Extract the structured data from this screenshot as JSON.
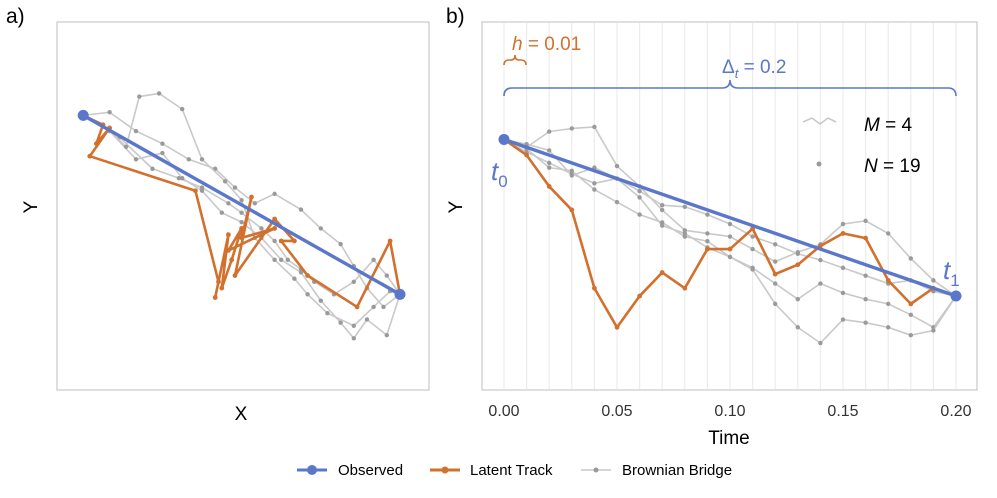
{
  "colors": {
    "observed": "#5a77c9",
    "latent": "#d2702d",
    "bridge": "#c9c9c9",
    "bridge_dot": "#9a9a9a",
    "axis": "#bfbfbf",
    "vgrid": "#ececec"
  },
  "legend": {
    "observed": "Observed",
    "latent": "Latent Track",
    "bridge": "Brownian Bridge"
  },
  "panel_a": {
    "label": "a)",
    "xlabel": "X",
    "ylabel": "Y"
  },
  "panel_b": {
    "label": "b)",
    "xlabel": "Time",
    "ylabel": "Y",
    "h_label": "h = 0.01",
    "delta_label": "Δt = 0.2",
    "m_label": "M = 4",
    "n_label": "N = 19",
    "t0_label": "t0",
    "t1_label": "t1"
  },
  "chart_data": [
    {
      "type": "line",
      "panel": "a",
      "title": "",
      "xlabel": "X",
      "ylabel": "Y",
      "xlim": [
        0,
        1
      ],
      "ylim": [
        0,
        1
      ],
      "series": [
        {
          "name": "Observed",
          "x": [
            0.04,
            1.0
          ],
          "y": [
            0.83,
            0.26
          ]
        },
        {
          "name": "Latent Track",
          "x": [
            0.04,
            0.1,
            0.08,
            0.12,
            0.06,
            0.38,
            0.45,
            0.44,
            0.48,
            0.46,
            0.49,
            0.52,
            0.48,
            0.62,
            0.52,
            0.55,
            0.5,
            0.62,
            0.68,
            0.64,
            0.72,
            0.87,
            0.97,
            1.0
          ],
          "y": [
            0.83,
            0.8,
            0.74,
            0.79,
            0.7,
            0.59,
            0.3,
            0.25,
            0.45,
            0.28,
            0.37,
            0.47,
            0.4,
            0.47,
            0.44,
            0.57,
            0.32,
            0.5,
            0.43,
            0.43,
            0.32,
            0.22,
            0.43,
            0.26
          ]
        },
        {
          "name": "Brownian Bridge 1",
          "x": [
            0.04,
            0.15,
            0.25,
            0.33,
            0.4,
            0.48,
            0.52,
            0.58,
            0.62,
            0.66,
            0.7,
            0.74,
            0.8,
            0.86,
            0.92,
            0.96,
            1.0
          ],
          "y": [
            0.83,
            0.76,
            0.66,
            0.63,
            0.6,
            0.55,
            0.52,
            0.47,
            0.43,
            0.37,
            0.34,
            0.3,
            0.26,
            0.3,
            0.37,
            0.32,
            0.26
          ]
        },
        {
          "name": "Brownian Bridge 2",
          "x": [
            0.04,
            0.12,
            0.2,
            0.28,
            0.36,
            0.44,
            0.5,
            0.56,
            0.62,
            0.7,
            0.76,
            0.82,
            0.86,
            0.9,
            0.95,
            1.0
          ],
          "y": [
            0.83,
            0.84,
            0.78,
            0.74,
            0.69,
            0.66,
            0.6,
            0.55,
            0.58,
            0.53,
            0.47,
            0.42,
            0.35,
            0.28,
            0.22,
            0.26
          ]
        },
        {
          "name": "Brownian Bridge 3",
          "x": [
            0.04,
            0.12,
            0.2,
            0.28,
            0.34,
            0.4,
            0.46,
            0.52,
            0.58,
            0.64,
            0.7,
            0.76,
            0.82,
            0.86,
            0.9,
            0.96,
            1.0
          ],
          "y": [
            0.83,
            0.78,
            0.69,
            0.71,
            0.63,
            0.59,
            0.52,
            0.49,
            0.44,
            0.37,
            0.33,
            0.24,
            0.17,
            0.12,
            0.18,
            0.13,
            0.26
          ]
        },
        {
          "name": "Brownian Bridge 4",
          "x": [
            0.04,
            0.1,
            0.17,
            0.21,
            0.27,
            0.34,
            0.4,
            0.47,
            0.52,
            0.56,
            0.62,
            0.68,
            0.72,
            0.78,
            0.86,
            0.92,
            0.97,
            1.0
          ],
          "y": [
            0.83,
            0.8,
            0.73,
            0.89,
            0.9,
            0.85,
            0.69,
            0.62,
            0.56,
            0.44,
            0.37,
            0.31,
            0.26,
            0.2,
            0.16,
            0.22,
            0.27,
            0.26
          ]
        }
      ]
    },
    {
      "type": "line",
      "panel": "b",
      "title": "",
      "xlabel": "Time",
      "ylabel": "Y",
      "xlim": [
        0,
        0.2
      ],
      "ylim": [
        -0.6,
        1.75
      ],
      "xticks": [
        "0.00",
        "0.05",
        "0.10",
        "0.15",
        "0.20"
      ],
      "series": [
        {
          "name": "Observed",
          "x": [
            0.0,
            0.2
          ],
          "y": [
            1.0,
            0.0
          ]
        },
        {
          "name": "Latent Track",
          "x": [
            0.0,
            0.01,
            0.02,
            0.03,
            0.04,
            0.05,
            0.06,
            0.07,
            0.08,
            0.09,
            0.1,
            0.11,
            0.12,
            0.13,
            0.14,
            0.15,
            0.16,
            0.17,
            0.18,
            0.19,
            0.2
          ],
          "y": [
            1.0,
            0.9,
            0.7,
            0.55,
            0.05,
            -0.2,
            0.0,
            0.15,
            0.05,
            0.3,
            0.3,
            0.43,
            0.14,
            0.2,
            0.32,
            0.4,
            0.37,
            0.1,
            -0.05,
            0.05,
            0.0
          ]
        },
        {
          "name": "Brownian Bridge 1",
          "x": [
            0.0,
            0.01,
            0.02,
            0.03,
            0.04,
            0.05,
            0.06,
            0.07,
            0.08,
            0.09,
            0.1,
            0.11,
            0.12,
            0.13,
            0.14,
            0.15,
            0.16,
            0.17,
            0.18,
            0.19,
            0.2
          ],
          "y": [
            1.0,
            0.95,
            1.05,
            1.07,
            1.08,
            0.83,
            0.7,
            0.55,
            0.42,
            0.4,
            0.38,
            0.3,
            0.22,
            0.28,
            0.33,
            0.46,
            0.48,
            0.4,
            0.24,
            0.1,
            0.0
          ]
        },
        {
          "name": "Brownian Bridge 2",
          "x": [
            0.0,
            0.01,
            0.02,
            0.03,
            0.04,
            0.05,
            0.06,
            0.07,
            0.08,
            0.09,
            0.1,
            0.11,
            0.12,
            0.13,
            0.14,
            0.15,
            0.16,
            0.17,
            0.18,
            0.19,
            0.2
          ],
          "y": [
            1.0,
            0.97,
            0.93,
            0.77,
            0.82,
            0.75,
            0.67,
            0.58,
            0.57,
            0.52,
            0.46,
            0.38,
            0.33,
            0.27,
            0.23,
            0.18,
            0.13,
            0.08,
            0.1,
            0.03,
            0.0
          ]
        },
        {
          "name": "Brownian Bridge 3",
          "x": [
            0.0,
            0.01,
            0.02,
            0.03,
            0.04,
            0.05,
            0.06,
            0.07,
            0.08,
            0.09,
            0.1,
            0.11,
            0.12,
            0.13,
            0.14,
            0.15,
            0.16,
            0.17,
            0.18,
            0.19,
            0.2
          ],
          "y": [
            1.0,
            0.92,
            0.85,
            0.78,
            0.72,
            0.75,
            0.63,
            0.45,
            0.4,
            0.31,
            0.25,
            0.18,
            0.08,
            -0.02,
            0.08,
            0.02,
            -0.02,
            -0.05,
            -0.12,
            -0.2,
            0.0
          ]
        },
        {
          "name": "Brownian Bridge 4",
          "x": [
            0.0,
            0.01,
            0.02,
            0.03,
            0.04,
            0.05,
            0.06,
            0.07,
            0.08,
            0.09,
            0.1,
            0.11,
            0.12,
            0.13,
            0.14,
            0.15,
            0.16,
            0.17,
            0.18,
            0.19,
            0.2
          ],
          "y": [
            1.0,
            0.94,
            0.82,
            0.8,
            0.68,
            0.6,
            0.52,
            0.47,
            0.38,
            0.35,
            0.25,
            0.17,
            -0.05,
            -0.2,
            -0.3,
            -0.15,
            -0.17,
            -0.2,
            -0.25,
            -0.22,
            0.0
          ]
        }
      ]
    }
  ]
}
